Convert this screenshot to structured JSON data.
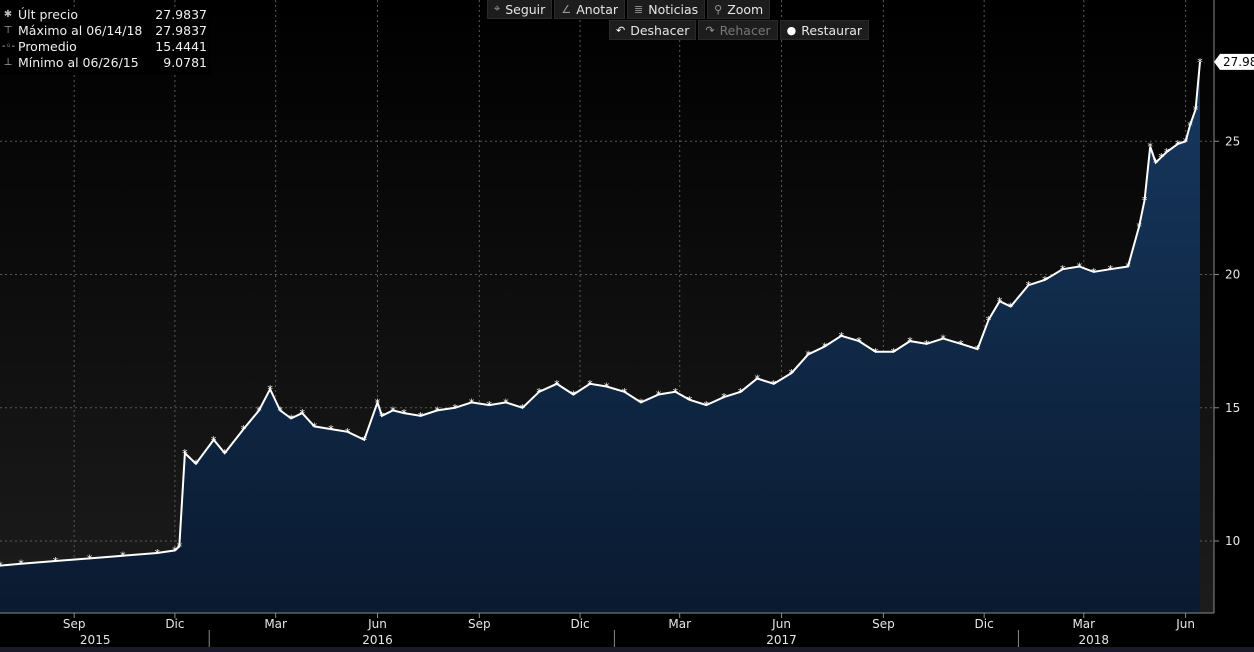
{
  "toolbar": {
    "row1": [
      {
        "label": "Seguir",
        "icon": "crosshair-icon"
      },
      {
        "label": "Anotar",
        "icon": "pencil-icon"
      },
      {
        "label": "Noticias",
        "icon": "news-icon"
      },
      {
        "label": "Zoom",
        "icon": "magnifier-icon"
      }
    ],
    "row2": [
      {
        "label": "Deshacer",
        "icon": "undo-icon"
      },
      {
        "label": "Rehacer",
        "icon": "redo-icon"
      },
      {
        "label": "Restaurar",
        "icon": "restore-icon"
      }
    ]
  },
  "legend": [
    {
      "name": "Últ precio",
      "value": "27.9837"
    },
    {
      "name": "Máximo al 06/14/18",
      "value": "27.9837"
    },
    {
      "name": "Promedio",
      "value": "15.4441"
    },
    {
      "name": "Mínimo al 06/26/15",
      "value": "9.0781"
    }
  ],
  "chart_data": {
    "type": "area",
    "y_ticks": [
      10,
      15,
      20,
      25
    ],
    "ylim": [
      7.3,
      30.3
    ],
    "last_value_label": "27.98",
    "x_month_labels": [
      "Sep",
      "Dic",
      "Mar",
      "Jun",
      "Sep",
      "Dic",
      "Mar",
      "Jun",
      "Sep",
      "Dic",
      "Mar",
      "Jun"
    ],
    "x_year_labels": [
      "2015",
      "2016",
      "2017",
      "2018"
    ],
    "colors": {
      "line": "#ffffff",
      "fill_top": "#14335a",
      "fill_bottom": "#0b1c33",
      "grid": "#5a5a5a",
      "background_top": "#000000",
      "background_bottom": "#1a1a1a"
    },
    "series": [
      {
        "x": [
          "2015-06-26",
          "2015-07-15",
          "2015-08-15",
          "2015-09-15",
          "2015-10-15",
          "2015-11-15",
          "2015-12-01",
          "2015-12-05",
          "2015-12-10",
          "2015-12-20",
          "2016-01-05",
          "2016-01-15",
          "2016-02-01",
          "2016-02-15",
          "2016-02-25",
          "2016-03-05",
          "2016-03-15",
          "2016-03-25",
          "2016-04-05",
          "2016-04-20",
          "2016-05-05",
          "2016-05-20",
          "2016-06-01",
          "2016-06-05",
          "2016-06-15",
          "2016-06-25",
          "2016-07-10",
          "2016-07-25",
          "2016-08-10",
          "2016-08-25",
          "2016-09-10",
          "2016-09-25",
          "2016-10-10",
          "2016-10-25",
          "2016-11-10",
          "2016-11-25",
          "2016-12-10",
          "2016-12-25",
          "2017-01-10",
          "2017-01-25",
          "2017-02-10",
          "2017-02-25",
          "2017-03-10",
          "2017-03-25",
          "2017-04-10",
          "2017-04-25",
          "2017-05-10",
          "2017-05-25",
          "2017-06-10",
          "2017-06-25",
          "2017-07-10",
          "2017-07-25",
          "2017-08-10",
          "2017-08-25",
          "2017-09-10",
          "2017-09-25",
          "2017-10-10",
          "2017-10-25",
          "2017-11-10",
          "2017-11-25",
          "2017-12-05",
          "2017-12-15",
          "2017-12-25",
          "2018-01-10",
          "2018-01-25",
          "2018-02-10",
          "2018-02-25",
          "2018-03-10",
          "2018-03-25",
          "2018-04-10",
          "2018-04-20",
          "2018-04-25",
          "2018-04-30",
          "2018-05-05",
          "2018-05-10",
          "2018-05-15",
          "2018-05-25",
          "2018-06-01",
          "2018-06-05",
          "2018-06-10",
          "2018-06-14"
        ],
        "y": [
          9.08,
          9.15,
          9.25,
          9.35,
          9.45,
          9.55,
          9.65,
          9.8,
          13.3,
          12.9,
          13.8,
          13.3,
          14.2,
          14.9,
          15.7,
          14.9,
          14.6,
          14.8,
          14.3,
          14.2,
          14.1,
          13.8,
          15.2,
          14.7,
          14.9,
          14.8,
          14.7,
          14.9,
          15.0,
          15.2,
          15.1,
          15.2,
          15.0,
          15.6,
          15.9,
          15.5,
          15.9,
          15.8,
          15.6,
          15.2,
          15.5,
          15.6,
          15.3,
          15.1,
          15.4,
          15.6,
          16.1,
          15.9,
          16.3,
          17.0,
          17.3,
          17.7,
          17.5,
          17.1,
          17.1,
          17.5,
          17.4,
          17.6,
          17.4,
          17.2,
          18.3,
          19.0,
          18.8,
          19.6,
          19.8,
          20.2,
          20.3,
          20.1,
          20.2,
          20.3,
          21.8,
          22.8,
          24.8,
          24.2,
          24.4,
          24.6,
          24.9,
          25.0,
          25.6,
          26.2,
          27.98
        ]
      }
    ]
  }
}
